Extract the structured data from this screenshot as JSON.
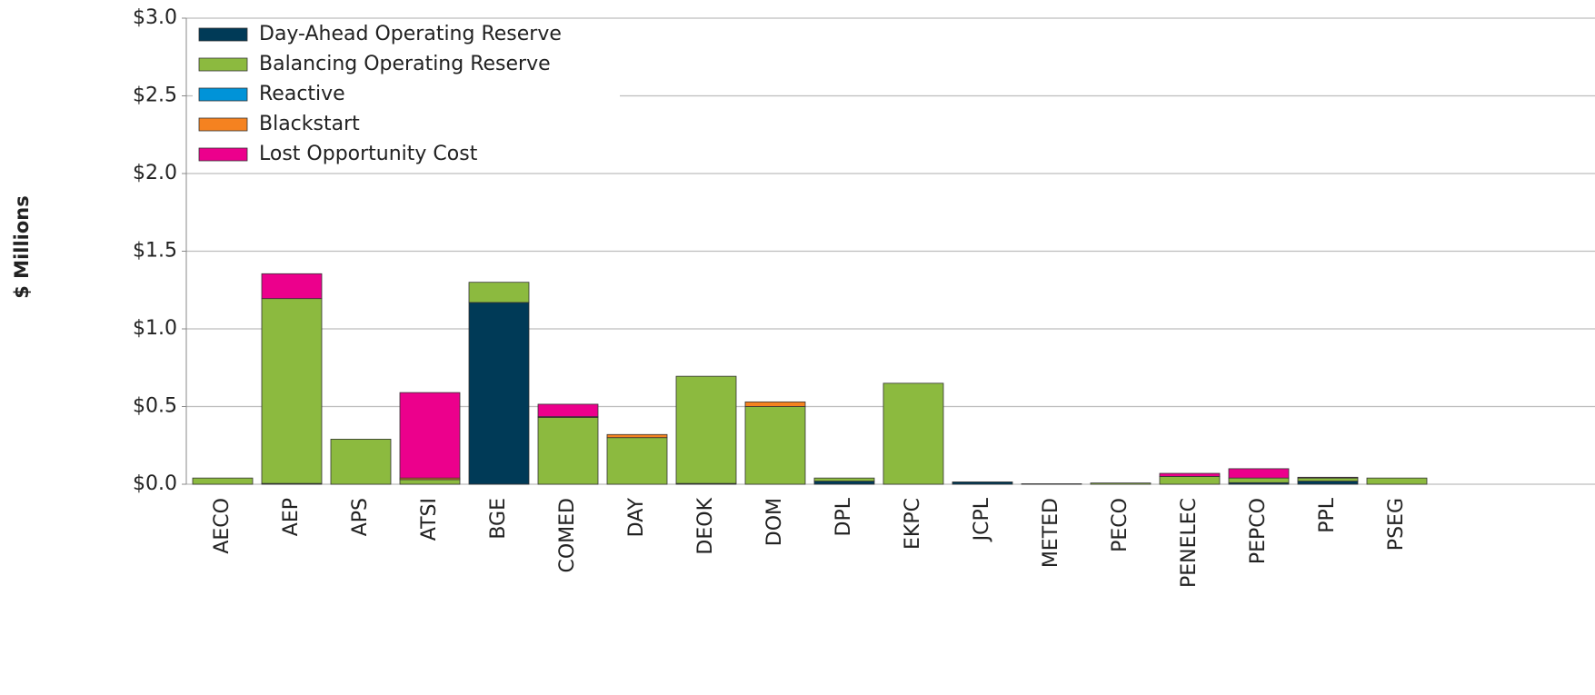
{
  "chart_data": {
    "type": "stacked_bar",
    "ylabel": "$ Millions",
    "categories": [
      "AECO",
      "AEP",
      "APS",
      "ATSI",
      "BGE",
      "COMED",
      "DAY",
      "DEOK",
      "DOM",
      "DPL",
      "EKPC",
      "JCPL",
      "METED",
      "PECO",
      "PENELEC",
      "PEPCO",
      "PPL",
      "PSEG"
    ],
    "series": [
      {
        "name": "Day-Ahead Operating Reserve",
        "color": "#003a57",
        "values": [
          0,
          0.005,
          0,
          0,
          1.17,
          0,
          0,
          0.005,
          0,
          0.02,
          0,
          0.015,
          0.003,
          0,
          0,
          0.01,
          0.02,
          0
        ]
      },
      {
        "name": "Balancing Operating Reserve",
        "color": "#8cba3f",
        "values": [
          0.04,
          1.19,
          0.29,
          0.03,
          0.13,
          0.43,
          0.3,
          0.69,
          0.5,
          0.02,
          0.65,
          0,
          0,
          0.008,
          0.05,
          0.03,
          0.02,
          0.04
        ]
      },
      {
        "name": "Reactive",
        "color": "#0093d8",
        "values": [
          0,
          0,
          0,
          0,
          0,
          0,
          0,
          0,
          0,
          0,
          0,
          0,
          0,
          0,
          0,
          0,
          0,
          0
        ]
      },
      {
        "name": "Blackstart",
        "color": "#f58220",
        "values": [
          0,
          0,
          0,
          0.01,
          0,
          0.005,
          0.02,
          0,
          0.03,
          0,
          0,
          0,
          0,
          0,
          0,
          0,
          0,
          0
        ]
      },
      {
        "name": "Lost Opportunity Cost",
        "color": "#ec008c",
        "values": [
          0,
          0.16,
          0,
          0.55,
          0,
          0.08,
          0,
          0,
          0,
          0,
          0,
          0,
          0,
          0,
          0.02,
          0.06,
          0.005,
          0
        ]
      }
    ],
    "ylim": [
      0,
      3
    ],
    "yticks": [
      {
        "value": 0,
        "label": "$0.0"
      },
      {
        "value": 0.5,
        "label": "$0.5"
      },
      {
        "value": 1,
        "label": "$1.0"
      },
      {
        "value": 1.5,
        "label": "$1.5"
      },
      {
        "value": 2,
        "label": "$2.0"
      },
      {
        "value": 2.5,
        "label": "$2.5"
      },
      {
        "value": 3,
        "label": "$3.0"
      }
    ],
    "grid": true,
    "legend": "upper left"
  }
}
